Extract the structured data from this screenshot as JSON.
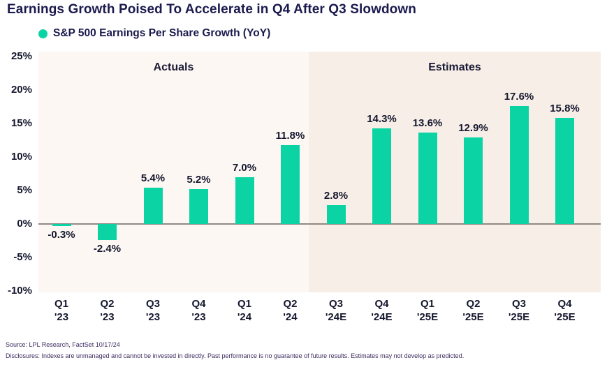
{
  "title": "Earnings Growth Poised To Accelerate in Q4 After Q3 Slowdown",
  "legend": {
    "label": "S&P 500 Earnings Per Share Growth (YoY)",
    "marker_color": "#0bd3a4"
  },
  "sections": {
    "actuals": "Actuals",
    "estimates": "Estimates"
  },
  "chart_data": {
    "type": "bar",
    "title": "Earnings Growth Poised To Accelerate in Q4 After Q3 Slowdown",
    "series_name": "S&P 500 Earnings Per Share Growth (YoY)",
    "unit": "%",
    "categories": [
      "Q1 '23",
      "Q2 '23",
      "Q3 '23",
      "Q4 '23",
      "Q1 '24",
      "Q2 '24",
      "Q3 '24E",
      "Q4 '24E",
      "Q1 '25E",
      "Q2 '25E",
      "Q3 '25E",
      "Q4 '25E"
    ],
    "values": [
      -0.3,
      -2.4,
      5.4,
      5.2,
      7.0,
      11.8,
      2.8,
      14.3,
      13.6,
      12.9,
      17.6,
      15.8
    ],
    "data_labels": [
      "-0.3%",
      "-2.4%",
      "5.4%",
      "5.2%",
      "7.0%",
      "11.8%",
      "2.8%",
      "14.3%",
      "13.6%",
      "12.9%",
      "17.6%",
      "15.8%"
    ],
    "yticks": {
      "values": [
        25,
        20,
        15,
        10,
        5,
        0,
        -5,
        -10
      ],
      "labels": [
        "25%",
        "20%",
        "15%",
        "10%",
        "5%",
        "0%",
        "-5%",
        "-10%"
      ]
    },
    "ylim": [
      -10,
      25
    ],
    "regions": [
      {
        "label": "Actuals",
        "start_index": 0,
        "end_index": 5
      },
      {
        "label": "Estimates",
        "start_index": 6,
        "end_index": 11
      }
    ],
    "grid": false,
    "legend_position": "top-left"
  },
  "footer": {
    "source": "Source: LPL Research, FactSet 10/17/24",
    "disclosures": "Disclosures: Indexes are unmanaged and cannot be invested in directly. Past performance is no guarantee of future results. Estimates may not develop as predicted."
  },
  "colors": {
    "bar": "#0bd3a4",
    "navy": "#1b1a4e",
    "text": "#15172e",
    "actuals_bg": "#fdf7f4",
    "estimates_bg": "#f7eee8",
    "zero_line": "#8f8a85",
    "footer_text": "#3b2b5e"
  }
}
